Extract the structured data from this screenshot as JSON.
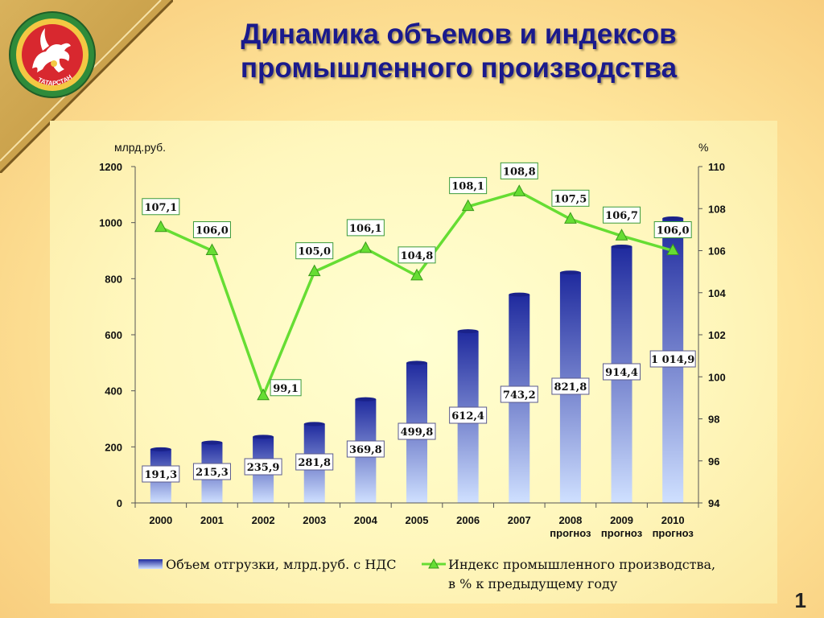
{
  "title_line1": "Динамика объемов и индексов",
  "title_line2": "промышленного производства",
  "emblem_text": "ТАТАРСТАН",
  "page_number": "1",
  "colors": {
    "bar_top": "#1f2a9e",
    "bar_bottom": "#cfe0ff",
    "line": "#66dd33",
    "label_border": "#3b9a3b",
    "title": "#1a1a8c"
  },
  "chart_data": {
    "type": "bar+line",
    "left_unit": "млрд.руб.",
    "right_unit": "%",
    "categories": [
      "2000",
      "2001",
      "2002",
      "2003",
      "2004",
      "2005",
      "2006",
      "2007",
      "2008",
      "2009",
      "2010"
    ],
    "category_sublabels": [
      "",
      "",
      "",
      "",
      "",
      "",
      "",
      "",
      "прогноз",
      "прогноз",
      "прогноз"
    ],
    "y_left": {
      "min": 0,
      "max": 1200,
      "ticks": [
        "0",
        "200",
        "400",
        "600",
        "800",
        "1000",
        "1200"
      ]
    },
    "y_right": {
      "min": 94,
      "max": 110,
      "ticks": [
        "94",
        "96",
        "98",
        "100",
        "102",
        "104",
        "106",
        "108",
        "110"
      ]
    },
    "series": [
      {
        "name": "Объем отгрузки, млрд.руб. с НДС",
        "type": "bar",
        "axis": "left",
        "values": [
          191.3,
          215.3,
          235.9,
          281.8,
          369.8,
          499.8,
          612.4,
          743.2,
          821.8,
          914.4,
          1014.9
        ],
        "labels": [
          "191,3",
          "215,3",
          "235,9",
          "281,8",
          "369,8",
          "499,8",
          "612,4",
          "743,2",
          "821,8",
          "914,4",
          "1 014,9"
        ]
      },
      {
        "name": "Индекс промышленного производства, в % к предыдущему году",
        "name_line1": "Индекс промышленного производства,",
        "name_line2": "в % к предыдущему году",
        "type": "line",
        "axis": "right",
        "values": [
          107.1,
          106.0,
          99.1,
          105.0,
          106.1,
          104.8,
          108.1,
          108.8,
          107.5,
          106.7,
          106.0
        ],
        "labels": [
          "107,1",
          "106,0",
          "99,1",
          "105,0",
          "106,1",
          "104,8",
          "108,1",
          "108,8",
          "107,5",
          "106,7",
          "106,0"
        ]
      }
    ],
    "legend": "bottom",
    "grid": false
  }
}
